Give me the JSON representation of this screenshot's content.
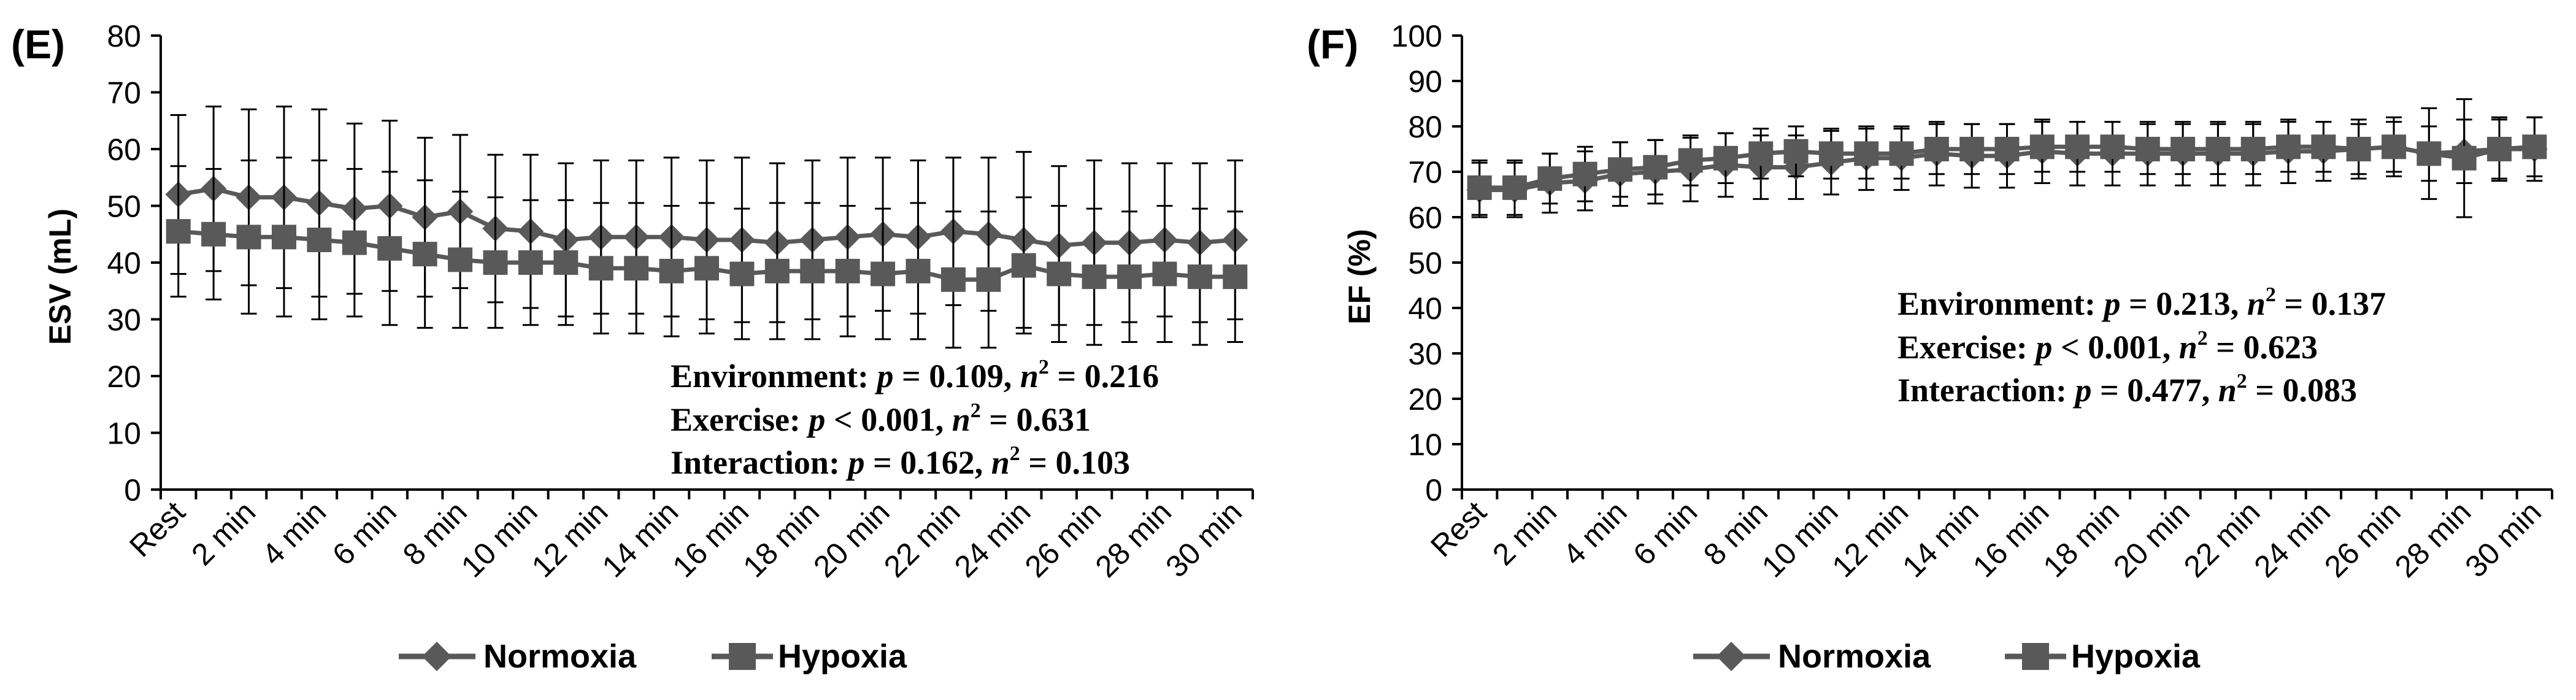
{
  "colors": {
    "normoxia": "#595959",
    "hypoxia": "#595959",
    "axis": "#000000",
    "text": "#000000",
    "background": "#ffffff"
  },
  "chart_data": [
    {
      "panel_label": "(E)",
      "type": "line",
      "ylabel": "ESV (mL)",
      "xlabel": "",
      "ylim": [
        0,
        80
      ],
      "yticks": [
        0,
        10,
        20,
        30,
        40,
        50,
        60,
        70,
        80
      ],
      "categories": [
        "Rest",
        "1 min",
        "2 min",
        "3 min",
        "4 min",
        "5 min",
        "6 min",
        "7 min",
        "8 min",
        "9 min",
        "10 min",
        "11 min",
        "12 min",
        "13 min",
        "14 min",
        "15 min",
        "16 min",
        "17 min",
        "18 min",
        "19 min",
        "20 min",
        "21 min",
        "22 min",
        "23 min",
        "24 min",
        "25 min",
        "26 min",
        "27 min",
        "28 min",
        "29 min",
        "30 min"
      ],
      "tick_labels": [
        "Rest",
        "2 min",
        "4 min",
        "6 min",
        "8 min",
        "10 min",
        "12 min",
        "14 min",
        "16 min",
        "18 min",
        "20 min",
        "22 min",
        "24 min",
        "26 min",
        "28 min",
        "30 min"
      ],
      "series": [
        {
          "name": "Normoxia",
          "marker": "diamond",
          "values": [
            52,
            53,
            51.5,
            51.5,
            50.5,
            49.5,
            50,
            48,
            49,
            46,
            45.5,
            44,
            44.5,
            44.5,
            44.5,
            44,
            44,
            43.5,
            44,
            44.5,
            45,
            44.5,
            45.5,
            45,
            44,
            43,
            43.5,
            43.5,
            44,
            43.5,
            44
          ],
          "err": [
            14,
            14.5,
            15.5,
            16,
            16.5,
            15,
            15,
            14,
            13.5,
            13,
            13.5,
            13.5,
            13.5,
            13.5,
            14,
            14,
            14.5,
            14,
            14,
            14,
            13.5,
            13.5,
            13,
            13.5,
            15.5,
            14,
            14.5,
            14,
            13.5,
            14,
            14
          ]
        },
        {
          "name": "Hypoxia",
          "marker": "square",
          "values": [
            45.5,
            45,
            44.5,
            44.5,
            44,
            43.5,
            42.5,
            41.5,
            40.5,
            40,
            40,
            40,
            39,
            39,
            38.5,
            39,
            38,
            38.5,
            38.5,
            38.5,
            38,
            38.5,
            37,
            37,
            39.5,
            38,
            37.5,
            37.5,
            38,
            37.5,
            37.5
          ],
          "err": [
            11.5,
            11.5,
            13.5,
            14,
            14,
            13,
            13.5,
            13,
            12,
            11.5,
            11,
            11,
            11.5,
            11.5,
            11.5,
            11.5,
            11.5,
            12,
            12,
            11.5,
            11.5,
            12,
            12,
            12,
            12,
            12,
            12,
            11.5,
            12,
            12,
            11.5
          ]
        }
      ],
      "stats": [
        {
          "label": "Environment: ",
          "p_rel": " = 0.109, ",
          "n_val": " = 0.216"
        },
        {
          "label": "Exercise: ",
          "p_rel": " < 0.001, ",
          "n_val": " = 0.631"
        },
        {
          "label": "Interaction: ",
          "p_rel": " = 0.162, ",
          "n_val": " = 0.103"
        }
      ],
      "legend": [
        "Normoxia",
        "Hypoxia"
      ]
    },
    {
      "panel_label": "(F)",
      "type": "line",
      "ylabel": "EF (%)",
      "xlabel": "",
      "ylim": [
        0,
        100
      ],
      "yticks": [
        0,
        10,
        20,
        30,
        40,
        50,
        60,
        70,
        80,
        90,
        100
      ],
      "categories": [
        "Rest",
        "1 min",
        "2 min",
        "3 min",
        "4 min",
        "5 min",
        "6 min",
        "7 min",
        "8 min",
        "9 min",
        "10 min",
        "11 min",
        "12 min",
        "13 min",
        "14 min",
        "15 min",
        "16 min",
        "17 min",
        "18 min",
        "19 min",
        "20 min",
        "21 min",
        "22 min",
        "23 min",
        "24 min",
        "25 min",
        "26 min",
        "27 min",
        "28 min",
        "29 min",
        "30 min"
      ],
      "tick_labels": [
        "Rest",
        "2 min",
        "4 min",
        "6 min",
        "8 min",
        "10 min",
        "12 min",
        "14 min",
        "16 min",
        "18 min",
        "20 min",
        "22 min",
        "24 min",
        "26 min",
        "28 min",
        "30 min"
      ],
      "series": [
        {
          "name": "Normoxia",
          "marker": "diamond",
          "values": [
            66,
            66,
            67.5,
            68,
            69.5,
            70,
            70.5,
            71.5,
            71,
            71,
            72,
            73,
            73,
            74,
            73.5,
            73.5,
            74.5,
            74,
            74,
            74,
            74,
            74,
            74,
            74.5,
            74.5,
            75,
            75.5,
            74,
            74.5,
            75,
            75
          ],
          "err": [
            6,
            6,
            6.5,
            6.5,
            7,
            7,
            7,
            7,
            7,
            7,
            7,
            7,
            7,
            7,
            7,
            7,
            7,
            7,
            7,
            7,
            7,
            7,
            7,
            7,
            6.5,
            6.5,
            6.5,
            10,
            7,
            7,
            7
          ]
        },
        {
          "name": "Hypoxia",
          "marker": "square",
          "values": [
            66.5,
            66.5,
            68.5,
            69.5,
            70.5,
            71,
            72.5,
            73,
            74,
            74.5,
            74,
            74,
            74,
            75,
            75,
            75,
            75.5,
            75.5,
            75.5,
            75,
            75,
            75,
            75,
            75.5,
            75.5,
            75,
            75.5,
            74,
            73,
            75,
            75.5
          ],
          "err": [
            6,
            6,
            5.5,
            6,
            6,
            6,
            5.5,
            5.5,
            5.5,
            5.5,
            5.5,
            5.5,
            5.5,
            5.5,
            5.5,
            5.5,
            5.5,
            5.5,
            5.5,
            5.5,
            5.5,
            5.5,
            5.5,
            5.5,
            5.5,
            5.5,
            5.5,
            6,
            13,
            6.5,
            6.5
          ]
        }
      ],
      "stats": [
        {
          "label": "Environment: ",
          "p_rel": " = 0.213, ",
          "n_val": " = 0.137"
        },
        {
          "label": "Exercise: ",
          "p_rel": " < 0.001, ",
          "n_val": " = 0.623"
        },
        {
          "label": "Interaction: ",
          "p_rel": " = 0.477, ",
          "n_val": " = 0.083"
        }
      ],
      "legend": [
        "Normoxia",
        "Hypoxia"
      ]
    }
  ],
  "stat_symbols": {
    "p": "p",
    "n": "n",
    "sup": "2"
  }
}
